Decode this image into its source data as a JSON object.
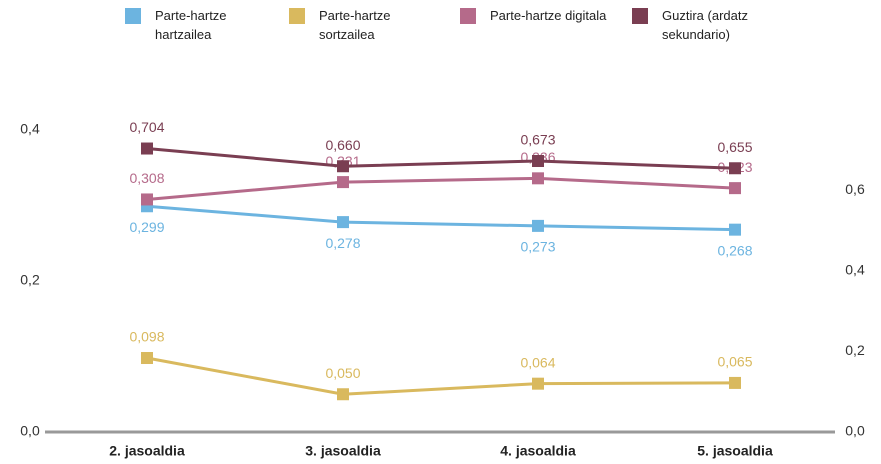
{
  "chart_data": {
    "type": "line",
    "categories": [
      "2. jasoaldia",
      "3. jasoaldia",
      "4. jasoaldia",
      "5. jasoaldia"
    ],
    "series": [
      {
        "name": "Parte-hartze hartzailea",
        "color": "#6cb4e0",
        "values": [
          0.299,
          0.278,
          0.273,
          0.268
        ],
        "value_labels": [
          "0,299",
          "0,278",
          "0,273",
          "0,268"
        ]
      },
      {
        "name": "Parte-hartze sortzailea",
        "color": "#d9b95e",
        "values": [
          0.098,
          0.05,
          0.064,
          0.065
        ],
        "value_labels": [
          "0,098",
          "0,050",
          "0,064",
          "0,065"
        ]
      },
      {
        "name": "Parte-hartze digitala",
        "color": "#b56a8a",
        "values": [
          0.308,
          0.331,
          0.336,
          0.323
        ],
        "value_labels": [
          "0,308",
          "0,331",
          "0,336",
          "0,323"
        ]
      },
      {
        "name": "Guztira (ardatz sekundario)",
        "color": "#7a3e52",
        "axis": "y2",
        "values": [
          0.704,
          0.66,
          0.673,
          0.655
        ],
        "value_labels": [
          "0,704",
          "0,660",
          "0,673",
          "0,655"
        ]
      }
    ],
    "ylim": [
      0,
      0.4
    ],
    "yticks": [
      {
        "value": 0,
        "label": "0,0"
      },
      {
        "value": 0.2,
        "label": "0,2"
      },
      {
        "value": 0.4,
        "label": "0,4"
      }
    ],
    "y2lim": [
      0,
      0.75
    ],
    "y2ticks": [
      {
        "value": 0,
        "label": "0,0"
      },
      {
        "value": 0.2,
        "label": "0,2"
      },
      {
        "value": 0.4,
        "label": "0,4"
      },
      {
        "value": 0.6,
        "label": "0,6"
      }
    ],
    "legend": "top"
  }
}
